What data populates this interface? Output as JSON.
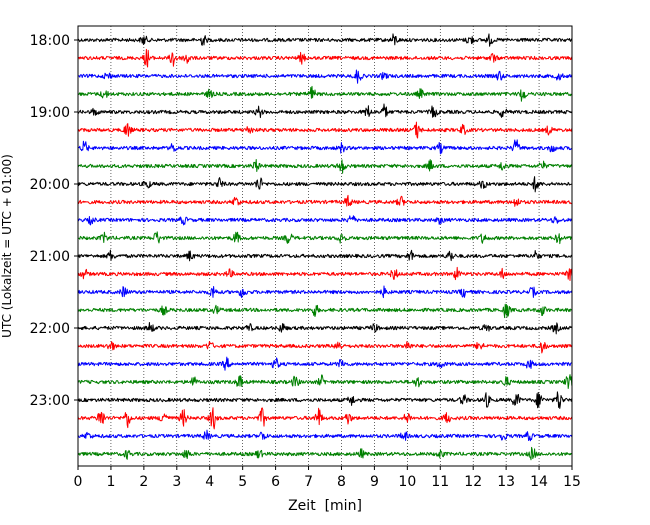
{
  "chart_data": {
    "type": "line",
    "title": "",
    "xlabel": "Zeit  [min]",
    "ylabel": "UTC (Lokalzeit = UTC + 01:00)",
    "xlim": [
      0,
      15
    ],
    "x_ticks": [
      0,
      1,
      2,
      3,
      4,
      5,
      6,
      7,
      8,
      9,
      10,
      11,
      12,
      13,
      14,
      15
    ],
    "x_tick_labels": [
      "0",
      "1",
      "2",
      "3",
      "4",
      "5",
      "6",
      "7",
      "8",
      "9",
      "10",
      "11",
      "12",
      "13",
      "14",
      "15"
    ],
    "y_tick_labels": [
      "18:00",
      "19:00",
      "20:00",
      "21:00",
      "22:00",
      "23:00"
    ],
    "grid": {
      "x": true,
      "style": "dotted"
    },
    "trace_colors": [
      "#000000",
      "#ff0000",
      "#0000ff",
      "#008000"
    ],
    "traces": [
      {
        "start": "18:00",
        "color": "#000000",
        "events": [
          [
            2.0,
            0.8
          ],
          [
            3.8,
            0.9
          ],
          [
            9.6,
            1.0
          ],
          [
            11.9,
            0.9
          ],
          [
            12.5,
            0.9
          ]
        ]
      },
      {
        "start": "18:15",
        "color": "#ff0000",
        "events": [
          [
            2.1,
            1.6
          ],
          [
            2.9,
            1.8
          ],
          [
            3.3,
            1.2
          ],
          [
            6.8,
            0.9
          ],
          [
            12.6,
            0.8
          ]
        ]
      },
      {
        "start": "18:30",
        "color": "#0000ff",
        "events": [
          [
            0.9,
            0.7
          ],
          [
            8.5,
            1.2
          ],
          [
            9.3,
            0.6
          ],
          [
            12.8,
            0.8
          ],
          [
            14.6,
            0.7
          ]
        ]
      },
      {
        "start": "18:45",
        "color": "#008000",
        "events": [
          [
            0.8,
            0.8
          ],
          [
            4.0,
            0.7
          ],
          [
            7.1,
            1.3
          ],
          [
            13.5,
            1.3
          ],
          [
            10.4,
            0.7
          ]
        ]
      },
      {
        "start": "19:00",
        "color": "#000000",
        "events": [
          [
            0.5,
            0.6
          ],
          [
            5.5,
            0.9
          ],
          [
            8.8,
            1.0
          ],
          [
            9.3,
            1.2
          ],
          [
            10.8,
            1.1
          ],
          [
            12.9,
            0.9
          ]
        ]
      },
      {
        "start": "19:15",
        "color": "#ff0000",
        "events": [
          [
            1.5,
            1.3
          ],
          [
            5.2,
            0.7
          ],
          [
            10.3,
            1.4
          ],
          [
            11.7,
            0.8
          ],
          [
            14.3,
            0.7
          ]
        ]
      },
      {
        "start": "19:30",
        "color": "#0000ff",
        "events": [
          [
            0.2,
            1.1
          ],
          [
            2.9,
            0.8
          ],
          [
            8.0,
            0.8
          ],
          [
            11.0,
            0.8
          ],
          [
            13.3,
            1.4
          ],
          [
            14.4,
            0.7
          ]
        ]
      },
      {
        "start": "19:45",
        "color": "#008000",
        "events": [
          [
            5.4,
            1.0
          ],
          [
            8.0,
            1.3
          ],
          [
            10.7,
            0.9
          ],
          [
            12.9,
            0.8
          ],
          [
            14.1,
            0.7
          ]
        ]
      },
      {
        "start": "20:00",
        "color": "#000000",
        "events": [
          [
            2.1,
            0.8
          ],
          [
            4.3,
            0.9
          ],
          [
            5.5,
            1.3
          ],
          [
            12.3,
            0.8
          ],
          [
            13.9,
            1.3
          ]
        ]
      },
      {
        "start": "20:15",
        "color": "#ff0000",
        "events": [
          [
            4.8,
            1.0
          ],
          [
            8.2,
            1.0
          ],
          [
            9.8,
            0.9
          ],
          [
            13.3,
            0.8
          ]
        ]
      },
      {
        "start": "20:30",
        "color": "#0000ff",
        "events": [
          [
            0.4,
            0.6
          ],
          [
            3.2,
            0.7
          ],
          [
            8.3,
            1.0
          ],
          [
            11.0,
            0.6
          ],
          [
            14.5,
            0.6
          ]
        ]
      },
      {
        "start": "20:45",
        "color": "#008000",
        "events": [
          [
            0.8,
            0.8
          ],
          [
            2.4,
            1.2
          ],
          [
            4.8,
            1.0
          ],
          [
            6.4,
            1.0
          ],
          [
            8.0,
            1.0
          ],
          [
            12.3,
            0.8
          ],
          [
            14.6,
            0.9
          ]
        ]
      },
      {
        "start": "21:00",
        "color": "#000000",
        "events": [
          [
            1.0,
            0.9
          ],
          [
            3.4,
            0.8
          ],
          [
            10.1,
            0.9
          ],
          [
            11.3,
            1.0
          ],
          [
            13.9,
            0.8
          ]
        ]
      },
      {
        "start": "21:15",
        "color": "#ff0000",
        "events": [
          [
            0.2,
            0.8
          ],
          [
            4.6,
            0.7
          ],
          [
            9.6,
            1.0
          ],
          [
            11.5,
            1.0
          ],
          [
            12.9,
            0.8
          ],
          [
            14.9,
            1.1
          ]
        ]
      },
      {
        "start": "21:30",
        "color": "#0000ff",
        "events": [
          [
            1.4,
            0.9
          ],
          [
            4.1,
            1.1
          ],
          [
            5.0,
            1.0
          ],
          [
            9.3,
            0.8
          ],
          [
            11.7,
            0.8
          ],
          [
            13.8,
            0.8
          ]
        ]
      },
      {
        "start": "21:45",
        "color": "#008000",
        "events": [
          [
            2.6,
            0.7
          ],
          [
            4.2,
            0.7
          ],
          [
            7.2,
            1.0
          ],
          [
            13.0,
            1.4
          ],
          [
            14.1,
            0.9
          ]
        ]
      },
      {
        "start": "22:00",
        "color": "#000000",
        "events": [
          [
            2.2,
            0.9
          ],
          [
            5.2,
            0.6
          ],
          [
            6.2,
            0.8
          ],
          [
            9.0,
            0.7
          ],
          [
            12.4,
            0.7
          ],
          [
            14.5,
            0.8
          ]
        ]
      },
      {
        "start": "22:15",
        "color": "#ff0000",
        "events": [
          [
            1.0,
            0.9
          ],
          [
            4.0,
            0.7
          ],
          [
            7.9,
            1.0
          ],
          [
            10.0,
            0.8
          ],
          [
            12.2,
            0.9
          ],
          [
            14.1,
            1.2
          ]
        ]
      },
      {
        "start": "22:30",
        "color": "#0000ff",
        "events": [
          [
            4.5,
            1.0
          ],
          [
            6.0,
            1.0
          ],
          [
            8.0,
            0.8
          ],
          [
            11.0,
            0.7
          ],
          [
            13.7,
            0.8
          ]
        ]
      },
      {
        "start": "22:45",
        "color": "#008000",
        "events": [
          [
            3.5,
            0.9
          ],
          [
            4.9,
            1.1
          ],
          [
            6.6,
            1.0
          ],
          [
            7.4,
            1.0
          ],
          [
            10.3,
            0.9
          ],
          [
            13.0,
            0.9
          ],
          [
            14.9,
            1.3
          ]
        ]
      },
      {
        "start": "23:00",
        "color": "#000000",
        "events": [
          [
            8.3,
            0.9
          ],
          [
            11.7,
            0.9
          ],
          [
            12.4,
            1.2
          ],
          [
            13.3,
            1.5
          ],
          [
            14.0,
            1.5
          ],
          [
            14.6,
            1.8
          ]
        ]
      },
      {
        "start": "23:15",
        "color": "#ff0000",
        "events": [
          [
            0.7,
            1.8
          ],
          [
            1.5,
            1.6
          ],
          [
            2.6,
            1.4
          ],
          [
            3.2,
            1.4
          ],
          [
            4.1,
            2.0
          ],
          [
            5.6,
            1.6
          ],
          [
            7.3,
            1.7
          ],
          [
            8.2,
            1.0
          ],
          [
            10.0,
            1.0
          ],
          [
            11.2,
            1.0
          ]
        ]
      },
      {
        "start": "23:30",
        "color": "#0000ff",
        "events": [
          [
            0.3,
            0.6
          ],
          [
            3.9,
            0.8
          ],
          [
            5.6,
            0.8
          ],
          [
            9.9,
            0.8
          ],
          [
            12.9,
            0.8
          ],
          [
            13.7,
            0.8
          ]
        ]
      },
      {
        "start": "23:45",
        "color": "#008000",
        "events": [
          [
            1.5,
            0.7
          ],
          [
            3.3,
            0.8
          ],
          [
            5.5,
            0.7
          ],
          [
            8.6,
            0.7
          ],
          [
            11.0,
            0.7
          ],
          [
            13.8,
            1.1
          ]
        ]
      }
    ]
  }
}
